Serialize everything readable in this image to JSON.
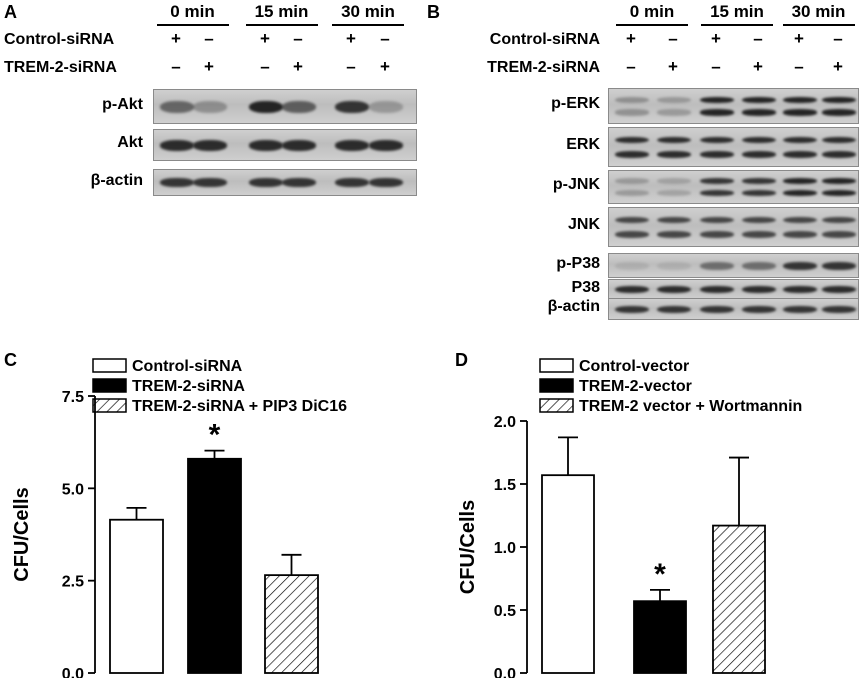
{
  "panelA": {
    "letter": "A",
    "timepoints": [
      "0 min",
      "15 min",
      "30 min"
    ],
    "row_labels": [
      "Control-siRNA",
      "TREM-2-siRNA"
    ],
    "row_signs": [
      [
        "+",
        "–",
        "+",
        "–",
        "+",
        "–"
      ],
      [
        "–",
        "+",
        "–",
        "+",
        "–",
        "+"
      ]
    ],
    "blots": [
      {
        "label": "p-Akt",
        "intensity": [
          0.55,
          0.3,
          0.95,
          0.6,
          0.85,
          0.25
        ]
      },
      {
        "label": "Akt",
        "intensity": [
          0.9,
          0.9,
          0.9,
          0.9,
          0.9,
          0.9
        ]
      },
      {
        "label": "β-actin",
        "intensity": [
          0.85,
          0.85,
          0.85,
          0.85,
          0.85,
          0.85
        ]
      }
    ]
  },
  "panelB": {
    "letter": "B",
    "timepoints": [
      "0 min",
      "15 min",
      "30 min"
    ],
    "row_labels": [
      "Control-siRNA",
      "TREM-2-siRNA"
    ],
    "row_signs": [
      [
        "+",
        "–",
        "+",
        "–",
        "+",
        "–"
      ],
      [
        "–",
        "+",
        "–",
        "+",
        "–",
        "+"
      ]
    ],
    "blots": [
      {
        "label": "p-ERK",
        "intensity": [
          0.3,
          0.25,
          0.95,
          0.95,
          0.95,
          0.95
        ]
      },
      {
        "label": "ERK",
        "intensity": [
          0.9,
          0.9,
          0.9,
          0.9,
          0.9,
          0.9
        ]
      },
      {
        "label": "p-JNK",
        "intensity": [
          0.25,
          0.2,
          0.85,
          0.85,
          0.95,
          0.95
        ]
      },
      {
        "label": "JNK",
        "intensity": [
          0.75,
          0.75,
          0.75,
          0.75,
          0.75,
          0.75
        ]
      },
      {
        "label": "p-P38",
        "intensity": [
          0.1,
          0.1,
          0.5,
          0.5,
          0.85,
          0.85
        ]
      },
      {
        "label": "P38",
        "intensity": [
          0.9,
          0.9,
          0.9,
          0.9,
          0.9,
          0.9
        ]
      },
      {
        "label": "β-actin",
        "intensity": [
          0.85,
          0.85,
          0.85,
          0.85,
          0.85,
          0.85
        ]
      }
    ]
  },
  "chart_data": [
    {
      "panel": "C",
      "type": "bar",
      "ylabel": "CFU/Cells",
      "ylim": [
        0,
        7.5
      ],
      "yticks": [
        "0.0",
        "2.5",
        "5.0",
        "7.5"
      ],
      "series": [
        {
          "name": "Control-siRNA",
          "value": 4.15,
          "error": 0.32,
          "fill": "white"
        },
        {
          "name": "TREM-2-siRNA",
          "value": 5.8,
          "error": 0.22,
          "fill": "black"
        },
        {
          "name": "TREM-2-siRNA + PIP3 DiC16",
          "value": 2.65,
          "error": 0.55,
          "fill": "hatched"
        }
      ],
      "annotations": [
        {
          "bar": 1,
          "text": "*"
        }
      ]
    },
    {
      "panel": "D",
      "type": "bar",
      "ylabel": "CFU/Cells",
      "ylim": [
        0,
        2.0
      ],
      "yticks": [
        "0.0",
        "0.5",
        "1.0",
        "1.5",
        "2.0"
      ],
      "series": [
        {
          "name": "Control-vector",
          "value": 1.57,
          "error": 0.3,
          "fill": "white"
        },
        {
          "name": "TREM-2-vector",
          "value": 0.57,
          "error": 0.09,
          "fill": "black"
        },
        {
          "name": "TREM-2 vector + Wortmannin",
          "value": 1.17,
          "error": 0.54,
          "fill": "hatched"
        }
      ],
      "annotations": [
        {
          "bar": 1,
          "text": "*"
        }
      ]
    }
  ]
}
